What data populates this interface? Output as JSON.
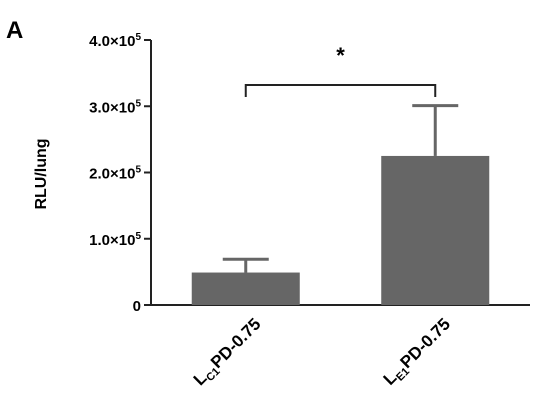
{
  "panel_label": "A",
  "chart_data": {
    "type": "bar",
    "xlabel": "",
    "ylabel": "RLU/lung",
    "ylim": [
      0,
      400000
    ],
    "yticks": [
      {
        "value": 0,
        "mantissa": "0",
        "times": "",
        "exponent": ""
      },
      {
        "value": 100000,
        "mantissa": "1.0",
        "times": "×10",
        "exponent": "5"
      },
      {
        "value": 200000,
        "mantissa": "2.0",
        "times": "×10",
        "exponent": "5"
      },
      {
        "value": 300000,
        "mantissa": "3.0",
        "times": "×10",
        "exponent": "5"
      },
      {
        "value": 400000,
        "mantissa": "4.0",
        "times": "×10",
        "exponent": "5"
      }
    ],
    "categories": [
      {
        "main": "L",
        "sub": "C1",
        "rest": "PD-0.75"
      },
      {
        "main": "L",
        "sub": "E1",
        "rest": "PD-0.75"
      }
    ],
    "values": [
      49000,
      225000
    ],
    "error_upper": [
      69000,
      301000
    ],
    "significance": {
      "text": "*",
      "between": [
        0,
        1
      ]
    },
    "bar_color": "#666666"
  }
}
